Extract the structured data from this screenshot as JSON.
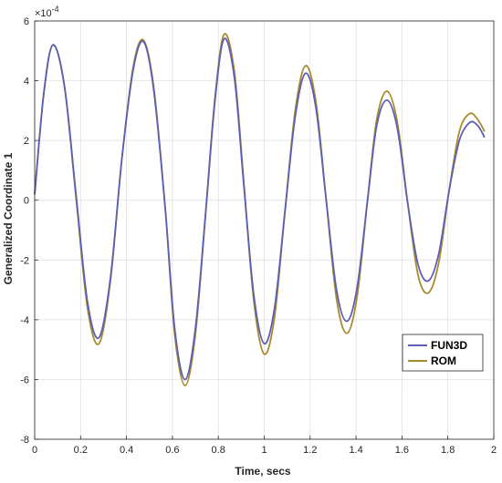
{
  "chart_data": {
    "type": "line",
    "xlabel": "Time, secs",
    "ylabel": "Generalized Coordinate 1",
    "exponent_label": "×10",
    "exponent_power": "-4",
    "xlim": [
      0,
      2
    ],
    "ylim": [
      -8,
      6
    ],
    "xticks": [
      0,
      0.2,
      0.4,
      0.6,
      0.8,
      1,
      1.2,
      1.4,
      1.6,
      1.8,
      2
    ],
    "xtick_labels": [
      "0",
      "0.2",
      "0.4",
      "0.6",
      "0.8",
      "1",
      "1.2",
      "1.4",
      "1.6",
      "1.8",
      "2"
    ],
    "yticks": [
      -8,
      -6,
      -4,
      -2,
      0,
      2,
      4,
      6
    ],
    "ytick_labels": [
      "-8",
      "-6",
      "-4",
      "-2",
      "0",
      "2",
      "4",
      "6"
    ],
    "grid": true,
    "legend_position": "lower-right",
    "series": [
      {
        "name": "FUN3D",
        "color": "#5b5fb5",
        "x": [
          0.0,
          0.04,
          0.08,
          0.13,
          0.18,
          0.23,
          0.28,
          0.33,
          0.38,
          0.43,
          0.475,
          0.52,
          0.57,
          0.61,
          0.655,
          0.7,
          0.745,
          0.785,
          0.825,
          0.87,
          0.91,
          0.955,
          1.0,
          1.045,
          1.09,
          1.135,
          1.18,
          1.225,
          1.27,
          1.315,
          1.36,
          1.405,
          1.45,
          1.49,
          1.535,
          1.58,
          1.625,
          1.67,
          1.715,
          1.76,
          1.805,
          1.85,
          1.895,
          1.93,
          1.96
        ],
        "y": [
          0.2,
          3.6,
          5.2,
          3.8,
          0.2,
          -3.4,
          -4.6,
          -2.6,
          1.4,
          4.4,
          5.3,
          3.6,
          -0.4,
          -4.3,
          -6.0,
          -4.3,
          -0.4,
          3.3,
          5.4,
          4.1,
          0.6,
          -3.2,
          -4.8,
          -3.6,
          -0.4,
          2.8,
          4.25,
          3.1,
          0.0,
          -3.0,
          -4.05,
          -2.9,
          0.0,
          2.5,
          3.35,
          2.4,
          -0.1,
          -2.15,
          -2.7,
          -1.8,
          0.3,
          2.0,
          2.6,
          2.5,
          2.1
        ]
      },
      {
        "name": "ROM",
        "color": "#a88a2e",
        "x": [
          0.0,
          0.04,
          0.08,
          0.13,
          0.18,
          0.23,
          0.28,
          0.33,
          0.38,
          0.43,
          0.475,
          0.52,
          0.57,
          0.61,
          0.655,
          0.7,
          0.745,
          0.785,
          0.825,
          0.87,
          0.91,
          0.955,
          1.0,
          1.045,
          1.09,
          1.135,
          1.18,
          1.225,
          1.27,
          1.315,
          1.36,
          1.405,
          1.45,
          1.49,
          1.535,
          1.58,
          1.625,
          1.67,
          1.715,
          1.76,
          1.805,
          1.85,
          1.895,
          1.93,
          1.96
        ],
        "y": [
          0.2,
          3.6,
          5.2,
          3.8,
          0.1,
          -3.6,
          -4.8,
          -2.7,
          1.4,
          4.5,
          5.35,
          3.7,
          -0.4,
          -4.5,
          -6.2,
          -4.5,
          -0.4,
          3.4,
          5.55,
          4.3,
          0.7,
          -3.4,
          -5.15,
          -3.9,
          -0.4,
          3.0,
          4.5,
          3.3,
          0.0,
          -3.3,
          -4.45,
          -3.2,
          0.0,
          2.7,
          3.65,
          2.6,
          -0.1,
          -2.5,
          -3.1,
          -2.1,
          0.3,
          2.3,
          2.9,
          2.7,
          2.3
        ]
      }
    ]
  }
}
